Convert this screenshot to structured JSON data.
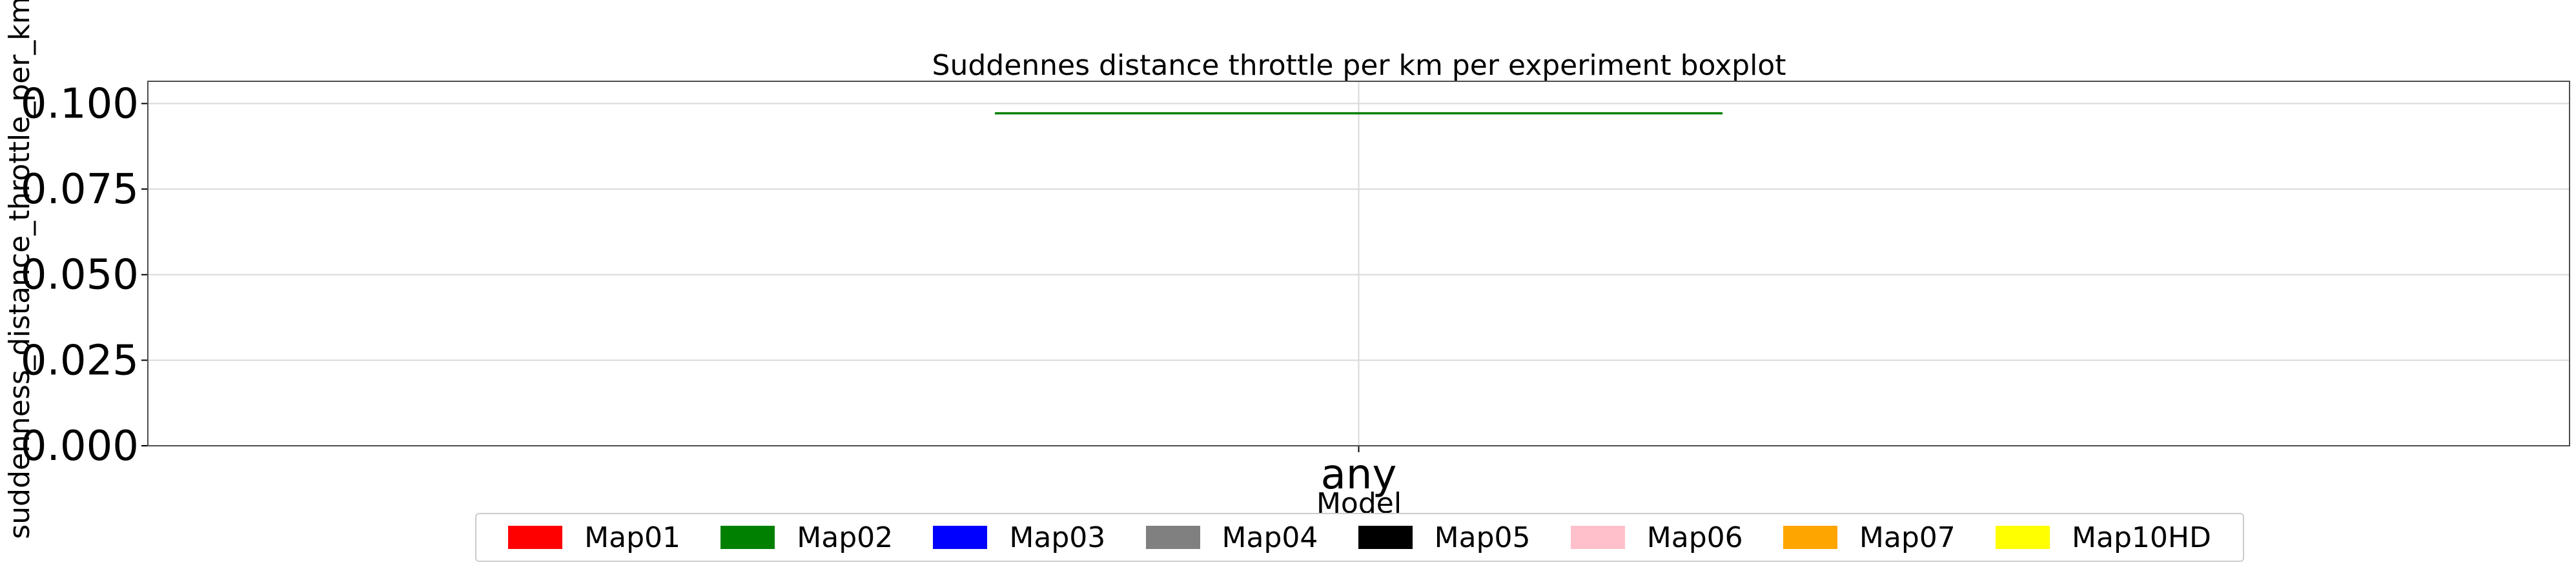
{
  "chart_data": {
    "type": "box",
    "title": "Suddennes distance throttle per km per experiment boxplot",
    "xlabel": "Model",
    "ylabel": "suddenness_distance_throttle_per_km",
    "categories": [
      "any"
    ],
    "ylim": [
      0,
      0.1065
    ],
    "yticks": [
      "0.000",
      "0.025",
      "0.050",
      "0.075",
      "0.100"
    ],
    "yticks_values": [
      0,
      0.025,
      0.05,
      0.075,
      0.1
    ],
    "grid": true,
    "series": [
      {
        "name": "Map02",
        "color": "#008000",
        "category": "any",
        "min": 0.0972,
        "q1": 0.0972,
        "median": 0.0972,
        "q3": 0.0972,
        "max": 0.0972
      }
    ],
    "legend": {
      "placement": "bottom-center",
      "entries": [
        {
          "label": "Map01",
          "color": "#ff0000"
        },
        {
          "label": "Map02",
          "color": "#008000"
        },
        {
          "label": "Map03",
          "color": "#0000ff"
        },
        {
          "label": "Map04",
          "color": "#808080"
        },
        {
          "label": "Map05",
          "color": "#000000"
        },
        {
          "label": "Map06",
          "color": "#ffc0cb"
        },
        {
          "label": "Map07",
          "color": "#ffa500"
        },
        {
          "label": "Map10HD",
          "color": "#ffff00"
        }
      ]
    }
  }
}
